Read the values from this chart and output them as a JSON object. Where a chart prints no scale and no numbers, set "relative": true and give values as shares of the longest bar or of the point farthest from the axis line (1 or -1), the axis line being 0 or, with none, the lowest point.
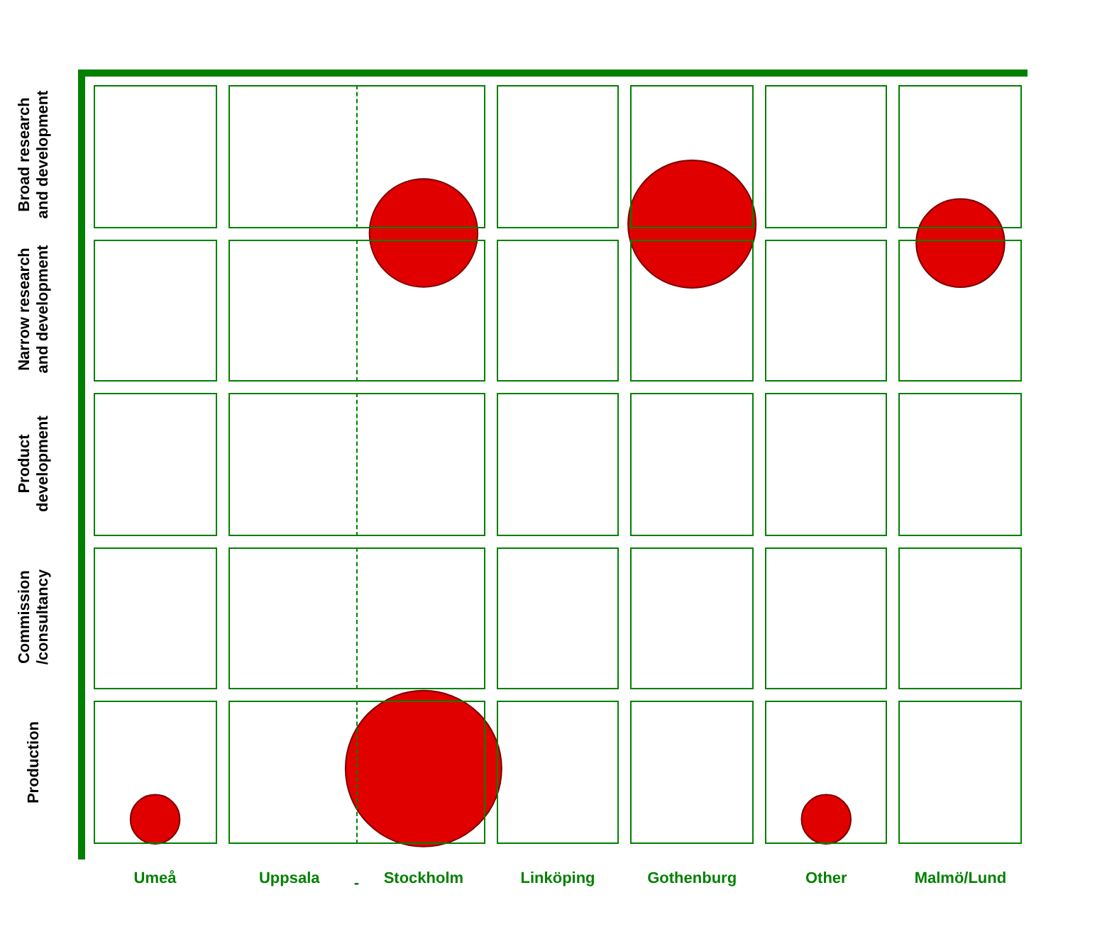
{
  "chart_data": {
    "type": "bubble",
    "relative": true,
    "categories": [
      "Umeå",
      "Uppsala",
      "Stockholm",
      "Linköping",
      "Gothenburg",
      "Other",
      "Malmö/Lund"
    ],
    "series": [
      {
        "color": "#e00000",
        "x": [
          "Stockholm",
          "Gothenburg",
          "Malmö/Lund",
          "Umeå",
          "Stockholm",
          "Other"
        ],
        "values": [
          0.985,
          1,
          0.968,
          0,
          0.085,
          0
        ],
        "sizes": [
          0.48,
          0.67,
          0.32,
          0.1,
          1,
          0.1
        ]
      }
    ],
    "annotations": [
      "Broad research and development",
      "Narrow research and development",
      "Product development",
      "Commission /consultancy",
      "Production",
      "-"
    ],
    "legend": false
  }
}
